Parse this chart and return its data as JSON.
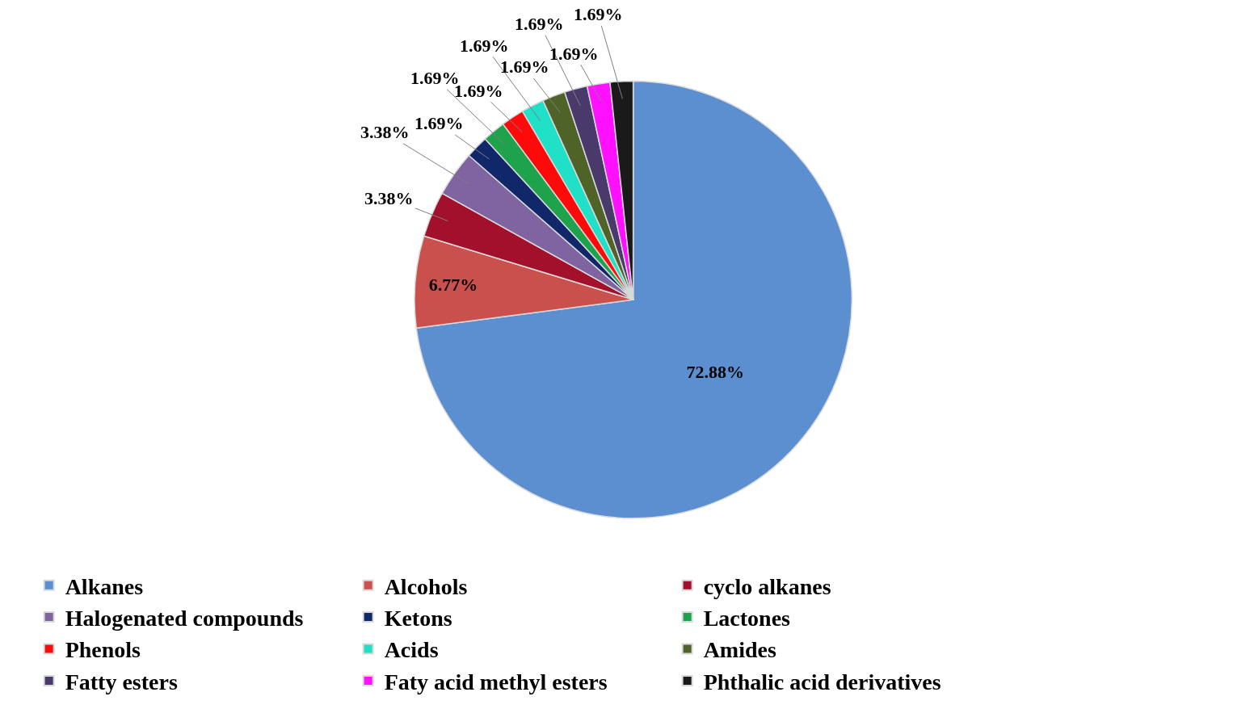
{
  "chart_data": {
    "type": "pie",
    "categories": [
      "Alkanes",
      "Alcohols",
      "cyclo alkanes",
      "Halogenated compounds",
      "Ketons",
      "Lactones",
      "Phenols",
      "Acids",
      "Amides",
      "Fatty esters",
      "Faty acid methyl esters",
      "Phthalic acid derivatives"
    ],
    "values": [
      72.88,
      6.77,
      3.38,
      3.38,
      1.69,
      1.69,
      1.69,
      1.69,
      1.69,
      1.69,
      1.69,
      1.69
    ],
    "value_labels": [
      "72.88%",
      "6.77%",
      "3.38%",
      "3.38%",
      "1.69%",
      "1.69%",
      "1.69%",
      "1.69%",
      "1.69%",
      "1.69%",
      "1.69%",
      "1.69%"
    ],
    "colors": [
      "#5b8fd0",
      "#c9504d",
      "#a3102b",
      "#8064a2",
      "#10286a",
      "#1ea34c",
      "#ff0a0a",
      "#20e0c8",
      "#4f6228",
      "#4a3a6b",
      "#ff10ff",
      "#1a1a1a"
    ],
    "legend": "bottom"
  }
}
